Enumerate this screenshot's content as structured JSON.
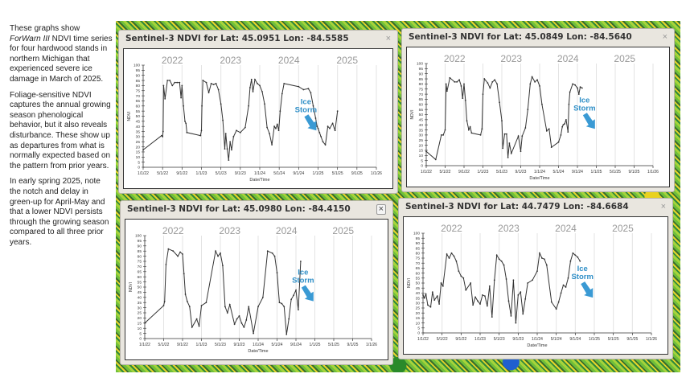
{
  "sidebar": {
    "p1_a": "These graphs show ",
    "p1_em": "ForWarn III",
    "p1_b": " NDVI time series for four hardwood stands in northern Michigan that experienced severe ice damage in March of 2025.",
    "p2": "Foliage-sensitive NDVI captures the annual growing season phenological behavior, but it also reveals disturbance. These show up as departures from what is normally expected based on the pattern from prior years.",
    "p3": "In early spring 2025, note the notch and delay in green-up for April-May and that a lower NDVI persists through the growing season compared to all three prior years."
  },
  "panels": [
    {
      "title": "Sentinel-3 NDVI for Lat: 45.0951 Lon: -84.5585",
      "close": "×"
    },
    {
      "title": "Sentinel-3 NDVI for Lat: 45.0849 Lon: -84.5640",
      "close": "×"
    },
    {
      "title": "Sentinel-3 NDVI for Lat: 45.0980 Lon: -84.4150",
      "close": "×"
    },
    {
      "title": "Sentinel-3 NDVI for Lat: 44.7479 Lon: -84.6684",
      "close": "×"
    }
  ],
  "chart_data": [
    {
      "type": "line",
      "title": "Sentinel-3 NDVI for Lat: 45.0951 Lon: -84.5585",
      "xlabel": "Date/Time",
      "ylabel": "NDVI",
      "ylim": [
        0,
        100
      ],
      "xticks": [
        "1/1/22",
        "5/1/22",
        "9/1/22",
        "1/1/23",
        "5/1/23",
        "9/1/23",
        "1/1/24",
        "5/1/24",
        "9/1/24",
        "1/1/25",
        "5/1/25",
        "9/1/25",
        "1/1/26"
      ],
      "yticks": [
        0,
        5,
        10,
        15,
        20,
        25,
        30,
        35,
        40,
        45,
        50,
        55,
        60,
        65,
        70,
        75,
        80,
        85,
        90,
        95,
        100
      ],
      "year_labels": [
        "2022",
        "2023",
        "2024",
        "2025"
      ],
      "annotation": "Ice Storm",
      "x_months": [
        0,
        3.8,
        4,
        4.1,
        4.2,
        4.5,
        5,
        5.5,
        6,
        6.5,
        7,
        7.5,
        7.8,
        8,
        8.3,
        8.6,
        8.8,
        9,
        11.8,
        12,
        12.1,
        12.3,
        13,
        13.5,
        14,
        14.5,
        15,
        15.5,
        16,
        16.4,
        16.8,
        17,
        17.3,
        17.6,
        17.9,
        18.2,
        18.6,
        19.2,
        20,
        21,
        21.7,
        22,
        22.3,
        22.6,
        23,
        23.5,
        24,
        24.5,
        25,
        25.5,
        26,
        26.5,
        27,
        27.3,
        27.6,
        27.9,
        28.2,
        28.6,
        29,
        32,
        33,
        34,
        34.5,
        35,
        35.5,
        35.8,
        36,
        36.3,
        36.6,
        37,
        37.5,
        38,
        38.4,
        39,
        39.5,
        40
      ],
      "values": [
        17,
        31,
        30,
        35,
        80,
        67,
        85,
        85,
        80,
        83,
        83,
        83,
        68,
        80,
        60,
        45,
        43,
        34,
        31,
        36,
        60,
        85,
        83,
        73,
        82,
        81,
        82,
        76,
        62,
        46,
        18,
        33,
        18,
        7,
        25,
        17,
        30,
        36,
        34,
        39,
        60,
        78,
        86,
        74,
        86,
        82,
        80,
        74,
        62,
        39,
        33,
        22,
        40,
        38,
        42,
        36,
        55,
        72,
        82,
        79,
        76,
        77,
        73,
        60,
        48,
        40,
        38,
        34,
        30,
        25,
        22,
        40,
        38,
        43,
        36,
        55
      ]
    },
    {
      "type": "line",
      "title": "Sentinel-3 NDVI for Lat: 45.0849 Lon: -84.5640",
      "xlabel": "Date/Time",
      "ylabel": "NDVI",
      "ylim": [
        0,
        100
      ],
      "xticks": [
        "1/1/22",
        "5/1/22",
        "9/1/22",
        "1/1/23",
        "5/1/23",
        "9/1/23",
        "1/1/24",
        "5/1/24",
        "9/1/24",
        "1/1/25",
        "5/1/25",
        "9/1/25",
        "1/1/26"
      ],
      "yticks": [
        0,
        5,
        10,
        15,
        20,
        25,
        30,
        35,
        40,
        45,
        50,
        55,
        60,
        65,
        70,
        75,
        80,
        85,
        90,
        95,
        100
      ],
      "year_labels": [
        "2022",
        "2023",
        "2024",
        "2025"
      ],
      "annotation": "Ice Storm",
      "x_months": [
        0,
        2,
        3.2,
        3.6,
        4,
        4.2,
        4.4,
        5,
        6,
        6.5,
        7,
        7.4,
        7.7,
        8,
        8.3,
        8.6,
        9,
        9.3,
        9.6,
        11.5,
        11.8,
        12,
        12.3,
        13,
        13.5,
        14,
        14.5,
        15,
        15.5,
        16,
        16.2,
        16.6,
        17,
        17.3,
        17.6,
        18,
        19.5,
        20,
        20.3,
        21,
        21.5,
        22,
        22.4,
        23,
        23.5,
        24,
        24.5,
        25.5,
        26,
        26.5,
        28,
        28.5,
        28.8,
        29,
        29.3,
        29.6,
        30,
        30.2,
        30.4,
        31,
        31.5,
        32,
        32.3,
        32.6,
        33
      ],
      "values": [
        14,
        6,
        30,
        30,
        35,
        80,
        73,
        86,
        82,
        82,
        84,
        78,
        66,
        80,
        64,
        44,
        35,
        38,
        32,
        30,
        36,
        70,
        85,
        81,
        76,
        82,
        84,
        80,
        62,
        44,
        17,
        31,
        31,
        8,
        22,
        12,
        29,
        14,
        29,
        37,
        55,
        80,
        87,
        82,
        84,
        78,
        60,
        34,
        36,
        18,
        23,
        30,
        38,
        40,
        41,
        45,
        33,
        60,
        72,
        80,
        79,
        76,
        70,
        77,
        76
      ]
    },
    {
      "type": "line",
      "title": "Sentinel-3 NDVI for Lat: 45.0980 Lon: -84.4150",
      "xlabel": "Date/Time",
      "ylabel": "NDVI",
      "ylim": [
        0,
        100
      ],
      "xticks": [
        "1/1/22",
        "5/1/22",
        "9/1/22",
        "1/1/23",
        "5/1/23",
        "9/1/23",
        "1/1/24",
        "5/1/24",
        "9/1/24",
        "1/1/25",
        "5/1/25",
        "9/1/25",
        "1/1/26"
      ],
      "yticks": [
        0,
        5,
        10,
        15,
        20,
        25,
        30,
        35,
        40,
        45,
        50,
        55,
        60,
        65,
        70,
        75,
        80,
        85,
        90,
        95,
        100
      ],
      "year_labels": [
        "2022",
        "2023",
        "2024",
        "2025"
      ],
      "annotation": "Ice Storm",
      "x_months": [
        0,
        4,
        4.2,
        4.5,
        5,
        6,
        7,
        7.5,
        8,
        8.3,
        8.6,
        9,
        9.5,
        10,
        11,
        11.5,
        12,
        13,
        15,
        15.5,
        16,
        16.5,
        17,
        17.5,
        18,
        19,
        19.5,
        20,
        20.5,
        21,
        21.5,
        22,
        23,
        24,
        25,
        26,
        27,
        27.5,
        28,
        28.5,
        29,
        29.5,
        30,
        30.5,
        31,
        31.5,
        32,
        32.5,
        33
      ],
      "values": [
        15,
        32,
        36,
        72,
        87,
        85,
        80,
        84,
        82,
        63,
        43,
        36,
        31,
        11,
        19,
        12,
        32,
        35,
        85,
        80,
        83,
        71,
        31,
        25,
        33,
        14,
        19,
        22,
        15,
        11,
        18,
        31,
        5,
        31,
        40,
        85,
        83,
        80,
        64,
        35,
        34,
        31,
        4,
        19,
        38,
        42,
        47,
        28,
        75
      ]
    },
    {
      "type": "line",
      "title": "Sentinel-3 NDVI for Lat: 44.7479 Lon: -84.6684",
      "xlabel": "Date/Time",
      "ylabel": "NDVI",
      "ylim": [
        0,
        100
      ],
      "xticks": [
        "1/1/22",
        "5/1/22",
        "9/1/22",
        "1/1/23",
        "5/1/23",
        "9/1/23",
        "1/1/24",
        "5/1/24",
        "9/1/24",
        "1/1/25",
        "5/1/25",
        "9/1/25",
        "1/1/26"
      ],
      "yticks": [
        0,
        5,
        10,
        15,
        20,
        25,
        30,
        35,
        40,
        45,
        50,
        55,
        60,
        65,
        70,
        75,
        80,
        85,
        90,
        95,
        100
      ],
      "year_labels": [
        "2022",
        "2023",
        "2024",
        "2025"
      ],
      "annotation": "Ice Storm",
      "x_months": [
        0,
        0.3,
        0.6,
        1,
        1.6,
        2,
        2.4,
        3,
        3.4,
        3.8,
        4.2,
        5,
        5.5,
        6,
        6.5,
        7,
        7.5,
        8,
        8.5,
        9,
        10,
        10.5,
        11,
        11.5,
        12,
        12.5,
        13,
        13.5,
        14,
        14.5,
        15,
        15.5,
        16,
        16.5,
        17,
        17.5,
        18,
        18.5,
        19,
        19.5,
        20,
        20.5,
        21,
        21.5,
        22,
        23,
        24,
        24.5,
        25,
        25.5,
        26,
        27,
        28,
        28.5,
        29,
        29.5,
        30,
        30.5,
        31,
        31.5,
        32,
        32.5,
        33
      ],
      "values": [
        38,
        35,
        39,
        28,
        26,
        41,
        33,
        37,
        29,
        50,
        47,
        79,
        75,
        80,
        77,
        72,
        62,
        57,
        55,
        43,
        50,
        28,
        36,
        32,
        29,
        38,
        37,
        27,
        47,
        16,
        53,
        78,
        74,
        72,
        68,
        54,
        32,
        17,
        53,
        10,
        38,
        41,
        19,
        34,
        50,
        53,
        62,
        80,
        75,
        74,
        68,
        31,
        24,
        31,
        40,
        48,
        46,
        55,
        72,
        80,
        78,
        76,
        72
      ]
    }
  ]
}
